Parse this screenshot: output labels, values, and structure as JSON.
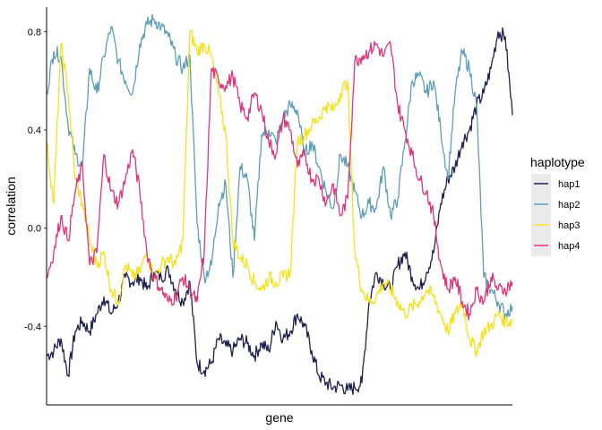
{
  "chart_data": {
    "type": "line",
    "title": "",
    "xlabel": "gene",
    "ylabel": "correlation",
    "ylim": [
      -0.72,
      0.9
    ],
    "y_ticks": [
      -0.4,
      0.0,
      0.4,
      0.8
    ],
    "y_tick_labels": [
      "-0.4",
      "0.0",
      "0.4",
      "0.8"
    ],
    "x_ticks_shown": false,
    "grid": false,
    "legend": {
      "title": "haplotype",
      "placement": "right"
    },
    "x": [
      0,
      8,
      16,
      24,
      32,
      40,
      48,
      56,
      64,
      72,
      80,
      88,
      96,
      104,
      112,
      120,
      128,
      136,
      144,
      152,
      160,
      168,
      176,
      184,
      192,
      200,
      208,
      216,
      224,
      232,
      240,
      248,
      256,
      264,
      272,
      280,
      288,
      296,
      304,
      312,
      320,
      328,
      336,
      344,
      352,
      360,
      368,
      376,
      384,
      392,
      400,
      408,
      416,
      424,
      432,
      440,
      448,
      456,
      464,
      472,
      480,
      488,
      496,
      504,
      512,
      520
    ],
    "series": [
      {
        "name": "hap1",
        "color": "#1f2150",
        "values": [
          -0.52,
          -0.5,
          -0.45,
          -0.6,
          -0.42,
          -0.38,
          -0.42,
          -0.35,
          -0.28,
          -0.35,
          -0.3,
          -0.2,
          -0.22,
          -0.2,
          -0.25,
          -0.18,
          -0.2,
          -0.17,
          -0.25,
          -0.3,
          -0.22,
          -0.55,
          -0.58,
          -0.55,
          -0.45,
          -0.48,
          -0.5,
          -0.45,
          -0.47,
          -0.52,
          -0.47,
          -0.5,
          -0.38,
          -0.45,
          -0.42,
          -0.35,
          -0.4,
          -0.5,
          -0.6,
          -0.63,
          -0.65,
          -0.64,
          -0.66,
          -0.65,
          -0.63,
          -0.3,
          -0.18,
          -0.22,
          -0.25,
          -0.15,
          -0.1,
          -0.2,
          -0.25,
          -0.18,
          -0.1,
          0.1,
          0.2,
          0.25,
          0.35,
          0.4,
          0.5,
          0.55,
          0.65,
          0.8,
          0.78,
          0.46
        ]
      },
      {
        "name": "hap2",
        "color": "#5f9eb8",
        "values": [
          0.55,
          0.72,
          0.7,
          0.42,
          0.3,
          0.25,
          0.65,
          0.55,
          0.7,
          0.82,
          0.68,
          0.6,
          0.55,
          0.75,
          0.83,
          0.85,
          0.82,
          0.78,
          0.7,
          0.65,
          0.7,
          0.02,
          -0.2,
          -0.15,
          0.1,
          0.18,
          -0.2,
          0.25,
          0.2,
          -0.05,
          0.38,
          0.4,
          0.35,
          0.45,
          0.5,
          0.48,
          0.3,
          0.35,
          0.25,
          0.15,
          0.08,
          0.3,
          0.25,
          0.15,
          0.05,
          0.1,
          0.08,
          0.25,
          0.05,
          0.12,
          0.35,
          0.6,
          0.62,
          0.55,
          0.6,
          0.4,
          0.2,
          0.55,
          0.72,
          0.65,
          0.5,
          -0.2,
          -0.25,
          -0.3,
          -0.35,
          -0.32
        ]
      },
      {
        "name": "hap3",
        "color": "#f5e21e",
        "values": [
          0.35,
          0.1,
          0.75,
          0.55,
          0.2,
          0.1,
          -0.05,
          -0.15,
          -0.1,
          -0.25,
          -0.3,
          -0.15,
          -0.2,
          -0.18,
          -0.1,
          -0.2,
          -0.15,
          -0.12,
          -0.15,
          -0.05,
          0.8,
          0.72,
          0.75,
          0.7,
          0.55,
          0.38,
          -0.05,
          -0.12,
          -0.15,
          -0.22,
          -0.25,
          -0.2,
          -0.22,
          -0.2,
          -0.18,
          0.35,
          0.38,
          0.42,
          0.45,
          0.5,
          0.48,
          0.55,
          0.6,
          -0.1,
          -0.25,
          -0.3,
          -0.28,
          -0.22,
          -0.25,
          -0.3,
          -0.35,
          -0.32,
          -0.3,
          -0.25,
          -0.28,
          -0.35,
          -0.42,
          -0.35,
          -0.3,
          -0.45,
          -0.5,
          -0.42,
          -0.4,
          -0.35,
          -0.38,
          -0.38
        ]
      },
      {
        "name": "hap4",
        "color": "#e0357c",
        "values": [
          -0.2,
          -0.1,
          0.05,
          -0.05,
          0.15,
          0.25,
          -0.15,
          -0.1,
          0.3,
          0.15,
          0.1,
          0.2,
          0.32,
          0.15,
          -0.1,
          -0.2,
          -0.25,
          -0.3,
          -0.28,
          -0.2,
          -0.25,
          -0.3,
          -0.1,
          0.65,
          0.6,
          0.58,
          0.62,
          0.5,
          0.45,
          0.55,
          0.48,
          0.35,
          0.3,
          0.45,
          0.4,
          0.25,
          0.3,
          0.2,
          0.2,
          0.1,
          0.18,
          0.05,
          0.12,
          0.68,
          0.7,
          0.72,
          0.75,
          0.7,
          0.75,
          0.5,
          0.4,
          0.3,
          0.2,
          0.15,
          0.05,
          -0.15,
          -0.25,
          -0.2,
          -0.3,
          -0.35,
          -0.25,
          -0.3,
          -0.2,
          -0.25,
          -0.25,
          -0.22
        ]
      }
    ]
  }
}
